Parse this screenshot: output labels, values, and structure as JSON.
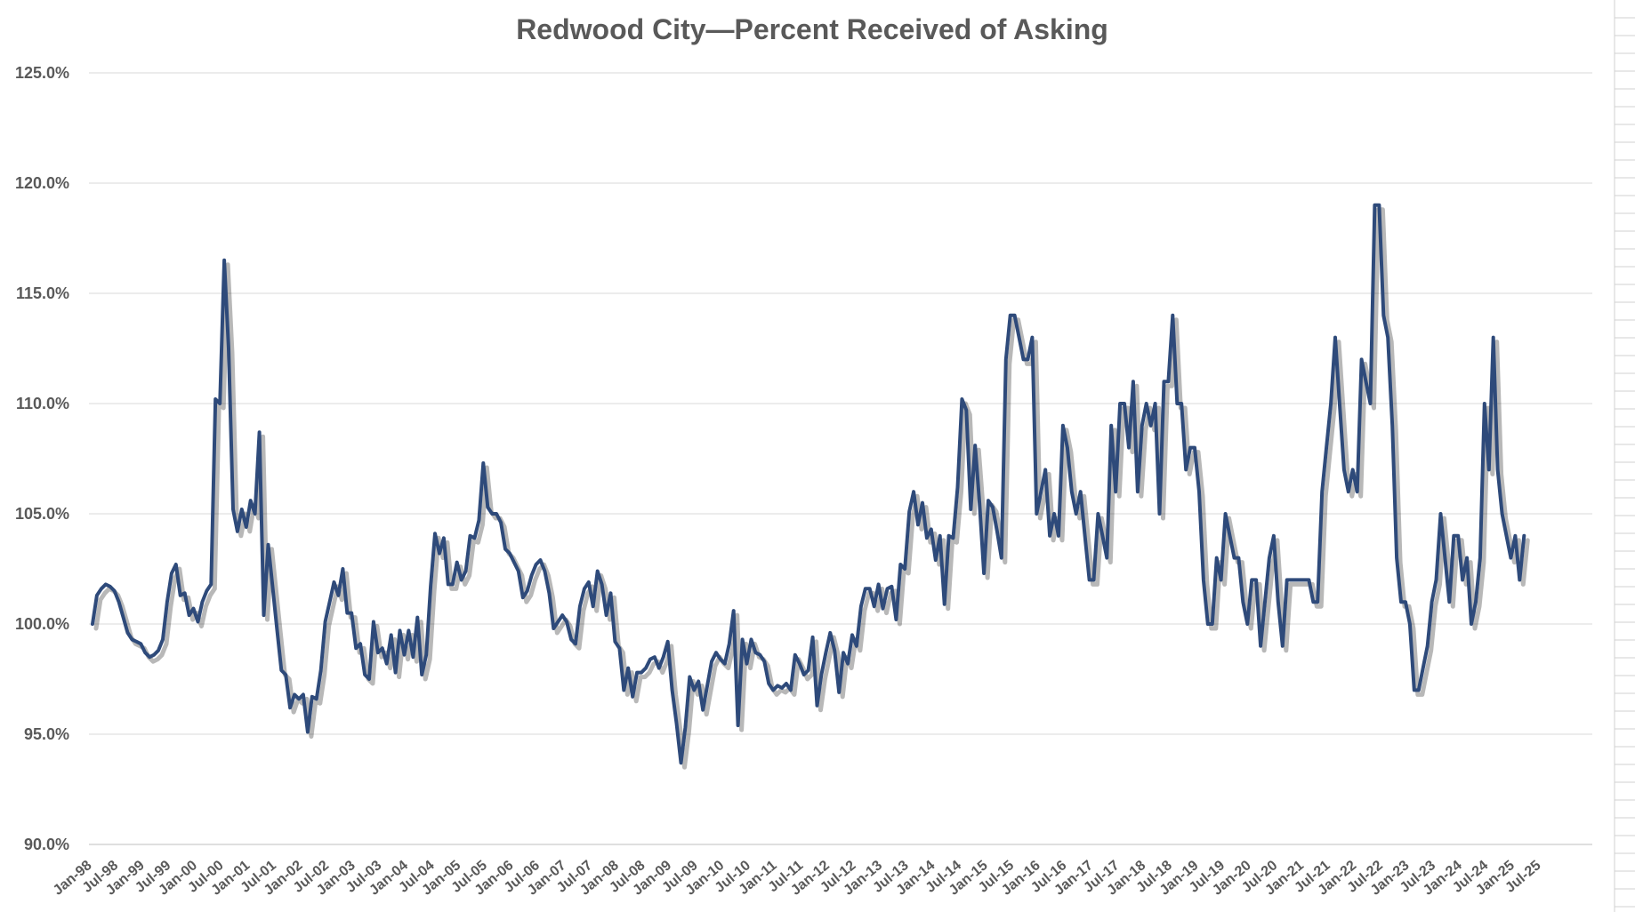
{
  "chart_data": {
    "type": "line",
    "title": "Redwood City—Percent Received of Asking",
    "xlabel": "",
    "ylabel": "",
    "ylim": [
      0.9,
      1.25
    ],
    "y_ticks": [
      {
        "value": 0.9,
        "label": "90.0%"
      },
      {
        "value": 0.95,
        "label": "95.0%"
      },
      {
        "value": 1.0,
        "label": "100.0%"
      },
      {
        "value": 1.05,
        "label": "105.0%"
      },
      {
        "value": 1.1,
        "label": "110.0%"
      },
      {
        "value": 1.15,
        "label": "115.0%"
      },
      {
        "value": 1.2,
        "label": "120.0%"
      },
      {
        "value": 1.25,
        "label": "125.0%"
      }
    ],
    "x_tick_labels": [
      "Jan-98",
      "Jul-98",
      "Jan-99",
      "Jul-99",
      "Jan-00",
      "Jul-00",
      "Jan-01",
      "Jul-01",
      "Jan-02",
      "Jul-02",
      "Jan-03",
      "Jul-03",
      "Jan-04",
      "Jul-04",
      "Jan-05",
      "Jul-05",
      "Jan-06",
      "Jul-06",
      "Jan-07",
      "Jul-07",
      "Jan-08",
      "Jul-08",
      "Jan-09",
      "Jul-09",
      "Jan-10",
      "Jul-10",
      "Jan-11",
      "Jul-11",
      "Jan-12",
      "Jul-12",
      "Jan-13",
      "Jul-13",
      "Jan-14",
      "Jul-14",
      "Jan-15",
      "Jul-15",
      "Jan-16",
      "Jul-16",
      "Jan-17",
      "Jul-17",
      "Jan-18",
      "Jul-18",
      "Jan-19",
      "Jul-19",
      "Jan-20",
      "Jul-20",
      "Jan-21",
      "Jul-21",
      "Jan-22",
      "Jul-22",
      "Jan-23",
      "Jul-23",
      "Jan-24",
      "Jul-24",
      "Jan-25",
      "Jul-25"
    ],
    "grid": true,
    "legend": "none",
    "color": "#2e4a7a",
    "series": [
      {
        "x_start": "Jan-98",
        "frequency": "monthly",
        "values": [
          1.0,
          1.013,
          1.016,
          1.018,
          1.017,
          1.015,
          1.01,
          1.003,
          0.996,
          0.993,
          0.992,
          0.991,
          0.987,
          0.985,
          0.986,
          0.988,
          0.993,
          1.01,
          1.023,
          1.027,
          1.013,
          1.014,
          1.004,
          1.007,
          1.001,
          1.01,
          1.015,
          1.018,
          1.102,
          1.1,
          1.165,
          1.125,
          1.052,
          1.042,
          1.052,
          1.044,
          1.056,
          1.05,
          1.087,
          1.004,
          1.036,
          1.017,
          0.998,
          0.979,
          0.977,
          0.962,
          0.968,
          0.966,
          0.968,
          0.951,
          0.967,
          0.966,
          0.979,
          1.001,
          1.01,
          1.019,
          1.013,
          1.025,
          1.005,
          1.005,
          0.989,
          0.991,
          0.977,
          0.975,
          1.001,
          0.987,
          0.989,
          0.982,
          0.995,
          0.978,
          0.997,
          0.986,
          0.997,
          0.985,
          1.003,
          0.977,
          0.986,
          1.017,
          1.041,
          1.032,
          1.039,
          1.018,
          1.018,
          1.028,
          1.02,
          1.024,
          1.04,
          1.039,
          1.047,
          1.073,
          1.053,
          1.05,
          1.05,
          1.046,
          1.034,
          1.032,
          1.028,
          1.024,
          1.012,
          1.015,
          1.022,
          1.027,
          1.029,
          1.024,
          1.014,
          0.998,
          1.001,
          1.004,
          1.001,
          0.993,
          0.991,
          1.008,
          1.016,
          1.019,
          1.008,
          1.024,
          1.018,
          1.004,
          1.014,
          0.992,
          0.989,
          0.97,
          0.98,
          0.967,
          0.978,
          0.978,
          0.98,
          0.984,
          0.985,
          0.98,
          0.985,
          0.992,
          0.97,
          0.955,
          0.937,
          0.953,
          0.976,
          0.97,
          0.974,
          0.961,
          0.972,
          0.983,
          0.987,
          0.984,
          0.982,
          0.991,
          1.006,
          0.954,
          0.993,
          0.982,
          0.993,
          0.987,
          0.986,
          0.983,
          0.973,
          0.97,
          0.972,
          0.971,
          0.973,
          0.97,
          0.986,
          0.982,
          0.977,
          0.979,
          0.994,
          0.963,
          0.977,
          0.987,
          0.996,
          0.988,
          0.969,
          0.987,
          0.982,
          0.995,
          0.99,
          1.008,
          1.016,
          1.016,
          1.008,
          1.018,
          1.007,
          1.016,
          1.017,
          1.002,
          1.027,
          1.025,
          1.051,
          1.06,
          1.045,
          1.055,
          1.039,
          1.043,
          1.029,
          1.04,
          1.009,
          1.04,
          1.039,
          1.062,
          1.102,
          1.097,
          1.052,
          1.081,
          1.055,
          1.023,
          1.056,
          1.053,
          1.042,
          1.03,
          1.12,
          1.14,
          1.14,
          1.13,
          1.12,
          1.12,
          1.13,
          1.05,
          1.06,
          1.07,
          1.04,
          1.05,
          1.04,
          1.09,
          1.08,
          1.06,
          1.05,
          1.06,
          1.04,
          1.02,
          1.02,
          1.05,
          1.04,
          1.03,
          1.09,
          1.06,
          1.1,
          1.1,
          1.08,
          1.11,
          1.06,
          1.09,
          1.1,
          1.09,
          1.1,
          1.05,
          1.11,
          1.11,
          1.14,
          1.1,
          1.1,
          1.07,
          1.08,
          1.08,
          1.06,
          1.02,
          1.0,
          1.0,
          1.03,
          1.02,
          1.05,
          1.04,
          1.03,
          1.03,
          1.01,
          1.0,
          1.02,
          1.02,
          0.99,
          1.01,
          1.03,
          1.04,
          1.01,
          0.99,
          1.02,
          1.02,
          1.02,
          1.02,
          1.02,
          1.02,
          1.01,
          1.01,
          1.06,
          1.08,
          1.1,
          1.13,
          1.1,
          1.07,
          1.06,
          1.07,
          1.06,
          1.12,
          1.11,
          1.1,
          1.19,
          1.19,
          1.14,
          1.13,
          1.09,
          1.03,
          1.01,
          1.01,
          1.0,
          0.97,
          0.97,
          0.98,
          0.99,
          1.01,
          1.02,
          1.05,
          1.03,
          1.01,
          1.04,
          1.04,
          1.02,
          1.03,
          1.0,
          1.01,
          1.03,
          1.1,
          1.07,
          1.13,
          1.07,
          1.05,
          1.04,
          1.03,
          1.04,
          1.02,
          1.04
        ]
      }
    ]
  }
}
